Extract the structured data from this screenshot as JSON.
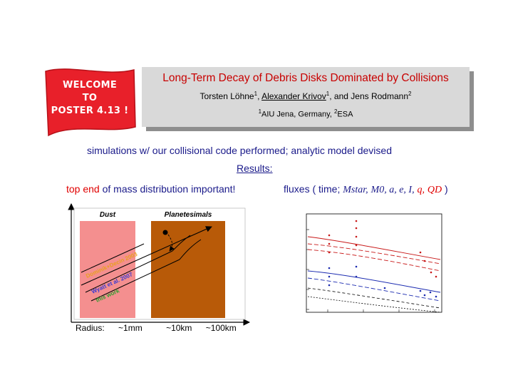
{
  "welcome": {
    "line1": "WELCOME",
    "line2": "TO",
    "line3": "POSTER 4.13 !"
  },
  "title": "Long-Term Decay of Debris Disks Dominated by Collisions",
  "authors": {
    "a1": "Torsten Löhne",
    "a2": "Alexander Krivov",
    "a3": "and Jens Rodmann",
    "sup1": "1",
    "sup2": "1",
    "sup3": "2"
  },
  "affiliations": {
    "sup1": "1",
    "aff1": "AIU Jena, Germany,",
    "sup2": "2",
    "aff2": "ESA"
  },
  "simulations_line": "simulations w/ our collisional code performed;  analytic model devised",
  "results_label": "Results:",
  "top_end": {
    "highlight": "top end",
    "rest": "of mass distribution important!"
  },
  "fluxes": {
    "prefix": "fluxes ( time;",
    "p1": "Mstar,",
    "p2": "M0, a, e, I,",
    "p3": "q,",
    "p4": "QD",
    "suffix": ")"
  },
  "diagram": {
    "dust_label": "Dust",
    "planetesimals_label": "Planetesimals",
    "refs": [
      "Dominik+Decin 2003",
      "Wyatt et al. 2007",
      "this work"
    ],
    "radius_label": "Radius:",
    "radius_ticks": [
      "~1mm",
      "~10km",
      "~100km"
    ]
  },
  "colors": {
    "dust": "#f48f8f",
    "planetesimals": "#b85a08",
    "title_red": "#c80000",
    "text_blue": "#1a1a8a"
  }
}
